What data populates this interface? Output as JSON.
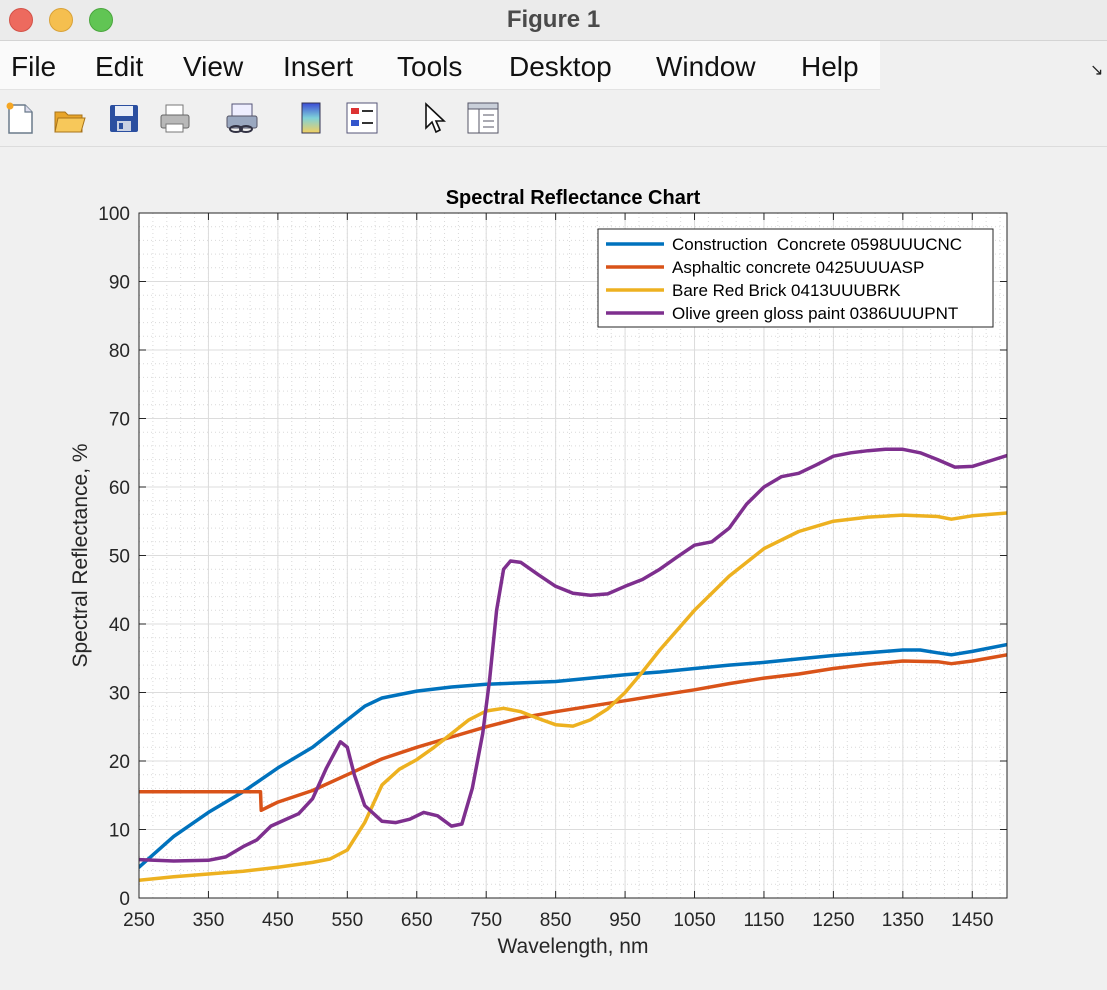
{
  "window": {
    "title": "Figure 1"
  },
  "menu": [
    "File",
    "Edit",
    "View",
    "Insert",
    "Tools",
    "Desktop",
    "Window",
    "Help"
  ],
  "toolbar": [
    "new-figure-icon",
    "open-file-icon",
    "save-icon",
    "print-icon",
    "link-plot-icon",
    "colorbar-icon",
    "legend-icon",
    "pointer-icon",
    "property-editor-icon"
  ],
  "chart_data": {
    "type": "line",
    "title": "Spectral Reflectance Chart",
    "xlabel": "Wavelength, nm",
    "ylabel": "Spectral Reflectance, %",
    "xlim": [
      250,
      1500
    ],
    "ylim": [
      0,
      100
    ],
    "xticks": [
      250,
      350,
      450,
      550,
      650,
      750,
      850,
      950,
      1050,
      1150,
      1250,
      1350,
      1450
    ],
    "yticks": [
      0,
      10,
      20,
      30,
      40,
      50,
      60,
      70,
      80,
      90,
      100
    ],
    "grid": true,
    "minor_grid": true,
    "legend_position": "top-right",
    "series": [
      {
        "name": "Construction  Concrete 0598UUUCNC",
        "color": "#0072BD",
        "points": [
          [
            250,
            4.5
          ],
          [
            300,
            9
          ],
          [
            350,
            12.5
          ],
          [
            400,
            15.5
          ],
          [
            450,
            19
          ],
          [
            500,
            22
          ],
          [
            550,
            26
          ],
          [
            575,
            28
          ],
          [
            600,
            29.2
          ],
          [
            650,
            30.2
          ],
          [
            700,
            30.8
          ],
          [
            750,
            31.2
          ],
          [
            800,
            31.4
          ],
          [
            850,
            31.6
          ],
          [
            900,
            32.1
          ],
          [
            950,
            32.6
          ],
          [
            1000,
            33
          ],
          [
            1050,
            33.5
          ],
          [
            1100,
            34
          ],
          [
            1150,
            34.4
          ],
          [
            1200,
            34.9
          ],
          [
            1250,
            35.4
          ],
          [
            1300,
            35.8
          ],
          [
            1350,
            36.2
          ],
          [
            1375,
            36.2
          ],
          [
            1400,
            35.8
          ],
          [
            1420,
            35.5
          ],
          [
            1450,
            36
          ],
          [
            1500,
            37
          ]
        ]
      },
      {
        "name": "Asphaltic concrete 0425UUUASP",
        "color": "#D95319",
        "points": [
          [
            250,
            15.5
          ],
          [
            300,
            15.5
          ],
          [
            350,
            15.5
          ],
          [
            400,
            15.5
          ],
          [
            425,
            15.5
          ],
          [
            426,
            12.8
          ],
          [
            440,
            13.5
          ],
          [
            450,
            14
          ],
          [
            500,
            15.7
          ],
          [
            550,
            18
          ],
          [
            600,
            20.3
          ],
          [
            650,
            22
          ],
          [
            700,
            23.5
          ],
          [
            750,
            25
          ],
          [
            800,
            26.3
          ],
          [
            850,
            27.2
          ],
          [
            900,
            28
          ],
          [
            950,
            28.8
          ],
          [
            1000,
            29.6
          ],
          [
            1050,
            30.4
          ],
          [
            1100,
            31.3
          ],
          [
            1150,
            32.1
          ],
          [
            1200,
            32.7
          ],
          [
            1250,
            33.5
          ],
          [
            1300,
            34.1
          ],
          [
            1350,
            34.6
          ],
          [
            1400,
            34.5
          ],
          [
            1420,
            34.2
          ],
          [
            1450,
            34.6
          ],
          [
            1500,
            35.5
          ]
        ]
      },
      {
        "name": "Bare Red Brick 0413UUUBRK",
        "color": "#EDB120",
        "points": [
          [
            250,
            2.6
          ],
          [
            300,
            3.1
          ],
          [
            350,
            3.5
          ],
          [
            400,
            3.9
          ],
          [
            450,
            4.5
          ],
          [
            500,
            5.2
          ],
          [
            525,
            5.7
          ],
          [
            550,
            7
          ],
          [
            575,
            11
          ],
          [
            600,
            16.5
          ],
          [
            625,
            18.8
          ],
          [
            650,
            20.2
          ],
          [
            675,
            22
          ],
          [
            700,
            24
          ],
          [
            725,
            26
          ],
          [
            750,
            27.3
          ],
          [
            775,
            27.7
          ],
          [
            800,
            27.2
          ],
          [
            825,
            26.2
          ],
          [
            850,
            25.3
          ],
          [
            875,
            25.1
          ],
          [
            900,
            26
          ],
          [
            925,
            27.6
          ],
          [
            950,
            30
          ],
          [
            975,
            33
          ],
          [
            1000,
            36.2
          ],
          [
            1050,
            42
          ],
          [
            1100,
            47
          ],
          [
            1150,
            51
          ],
          [
            1200,
            53.5
          ],
          [
            1250,
            55
          ],
          [
            1300,
            55.6
          ],
          [
            1350,
            55.9
          ],
          [
            1400,
            55.7
          ],
          [
            1420,
            55.3
          ],
          [
            1450,
            55.8
          ],
          [
            1500,
            56.2
          ]
        ]
      },
      {
        "name": "Olive green gloss paint 0386UUUPNT",
        "color": "#7E2F8E",
        "points": [
          [
            250,
            5.6
          ],
          [
            300,
            5.4
          ],
          [
            350,
            5.5
          ],
          [
            375,
            6
          ],
          [
            400,
            7.5
          ],
          [
            420,
            8.5
          ],
          [
            440,
            10.5
          ],
          [
            460,
            11.4
          ],
          [
            480,
            12.3
          ],
          [
            500,
            14.5
          ],
          [
            520,
            19
          ],
          [
            540,
            22.8
          ],
          [
            550,
            22
          ],
          [
            560,
            18
          ],
          [
            575,
            13.5
          ],
          [
            600,
            11.2
          ],
          [
            620,
            11
          ],
          [
            640,
            11.5
          ],
          [
            660,
            12.5
          ],
          [
            680,
            12
          ],
          [
            700,
            10.5
          ],
          [
            715,
            10.8
          ],
          [
            730,
            16
          ],
          [
            745,
            24
          ],
          [
            755,
            32
          ],
          [
            765,
            42
          ],
          [
            775,
            48
          ],
          [
            785,
            49.2
          ],
          [
            800,
            49
          ],
          [
            825,
            47.2
          ],
          [
            850,
            45.5
          ],
          [
            875,
            44.5
          ],
          [
            900,
            44.2
          ],
          [
            925,
            44.4
          ],
          [
            950,
            45.5
          ],
          [
            975,
            46.5
          ],
          [
            1000,
            48
          ],
          [
            1025,
            49.8
          ],
          [
            1050,
            51.5
          ],
          [
            1075,
            52
          ],
          [
            1100,
            54
          ],
          [
            1125,
            57.5
          ],
          [
            1150,
            60
          ],
          [
            1175,
            61.5
          ],
          [
            1200,
            62
          ],
          [
            1225,
            63.2
          ],
          [
            1250,
            64.5
          ],
          [
            1275,
            65
          ],
          [
            1300,
            65.3
          ],
          [
            1325,
            65.5
          ],
          [
            1350,
            65.5
          ],
          [
            1375,
            65
          ],
          [
            1400,
            64
          ],
          [
            1425,
            62.9
          ],
          [
            1450,
            63
          ],
          [
            1475,
            63.8
          ],
          [
            1500,
            64.6
          ]
        ]
      }
    ]
  }
}
